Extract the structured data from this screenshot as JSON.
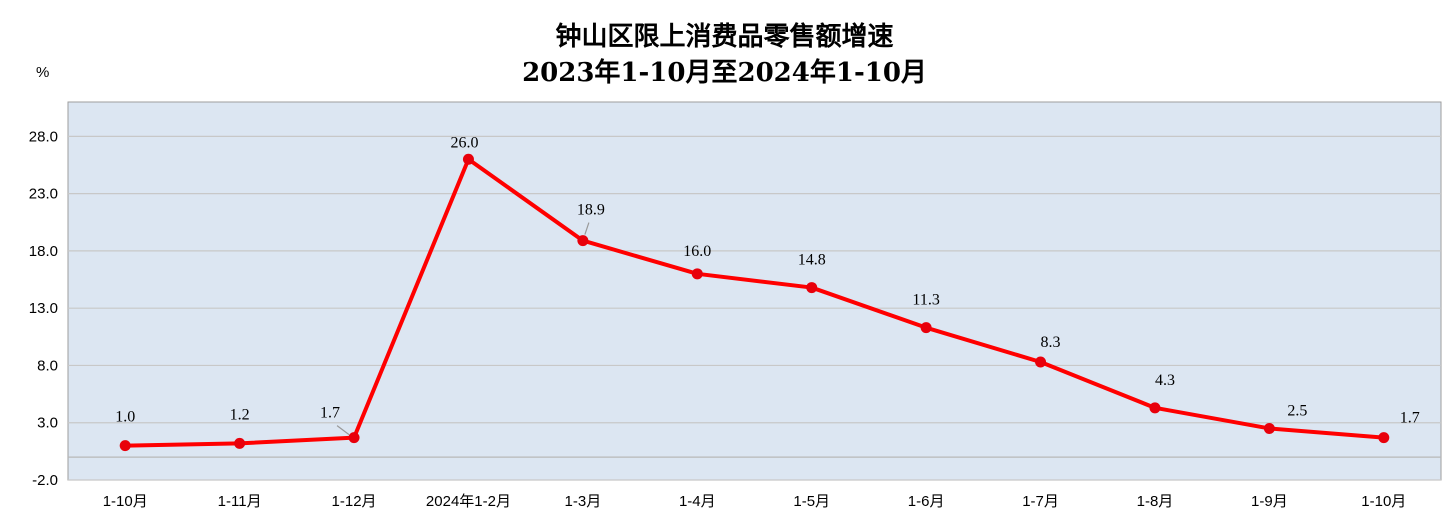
{
  "title": {
    "line1": "钟山区限上消费品零售额增速",
    "line2": "2023年1-10月至2024年1-10月"
  },
  "unit": "%",
  "colors": {
    "plot_background": "#dce6f2",
    "line": "#ff0000",
    "marker": "#e8000b",
    "grid": "#c8c8c8"
  },
  "chart_data": {
    "type": "line",
    "title": "钟山区限上消费品零售额增速 2023年1-10月至2024年1-10月",
    "ylabel": "%",
    "xlabel": "",
    "categories": [
      "1-10月",
      "1-11月",
      "1-12月",
      "2024年1-2月",
      "1-3月",
      "1-4月",
      "1-5月",
      "1-6月",
      "1-7月",
      "1-8月",
      "1-9月",
      "1-10月"
    ],
    "series": [
      {
        "values": [
          1.0,
          1.2,
          1.7,
          26.0,
          18.9,
          16.0,
          14.8,
          11.3,
          8.3,
          4.3,
          2.5,
          1.7
        ]
      }
    ],
    "data_labels": [
      "1.0",
      "1.2",
      "1.7",
      "26.0",
      "18.9",
      "16.0",
      "14.8",
      "11.3",
      "8.3",
      "4.3",
      "2.5",
      "1.7"
    ],
    "yticks": [
      -2.0,
      3.0,
      8.0,
      13.0,
      18.0,
      23.0,
      28.0
    ],
    "ytick_labels": [
      "-2.0",
      "3.0",
      "8.0",
      "13.0",
      "18.0",
      "23.0",
      "28.0"
    ],
    "ylim": [
      -2.0,
      31.0
    ],
    "grid": true,
    "legend": "none"
  }
}
